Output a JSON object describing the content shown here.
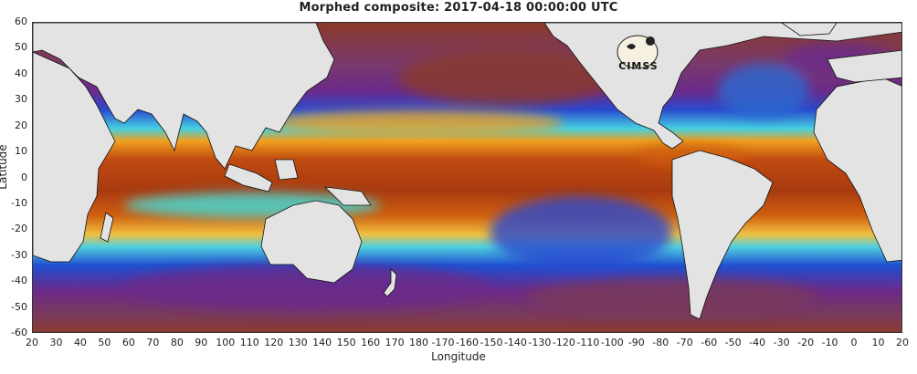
{
  "title": "Morphed composite: 2017-04-18 00:00:00 UTC",
  "axes": {
    "xlabel": "Longitude",
    "ylabel": "Latitude",
    "lat_ticks": [
      "60",
      "50",
      "40",
      "30",
      "20",
      "10",
      "0",
      "-10",
      "-20",
      "-30",
      "-40",
      "-50",
      "-60"
    ],
    "lon_ticks": [
      "20",
      "30",
      "40",
      "50",
      "60",
      "70",
      "80",
      "90",
      "100",
      "110",
      "120",
      "130",
      "140",
      "150",
      "160",
      "170",
      "180",
      "-170",
      "-160",
      "-150",
      "-140",
      "-130",
      "-120",
      "-110",
      "-100",
      "-90",
      "-80",
      "-70",
      "-60",
      "-50",
      "-40",
      "-30",
      "-20",
      "-10",
      "0",
      "10",
      "20"
    ]
  },
  "logo": {
    "text": "CIMSS"
  },
  "colors": {
    "land": "#e3e3e3",
    "very_dry": "#8a3a2a",
    "dry_purple": "#6a2a8a",
    "blue": "#1f4fd0",
    "cyan": "#3fe0e0",
    "green": "#7ee07e",
    "yellow": "#f0e040",
    "orange": "#f09020",
    "moist": "#c04a10"
  }
}
